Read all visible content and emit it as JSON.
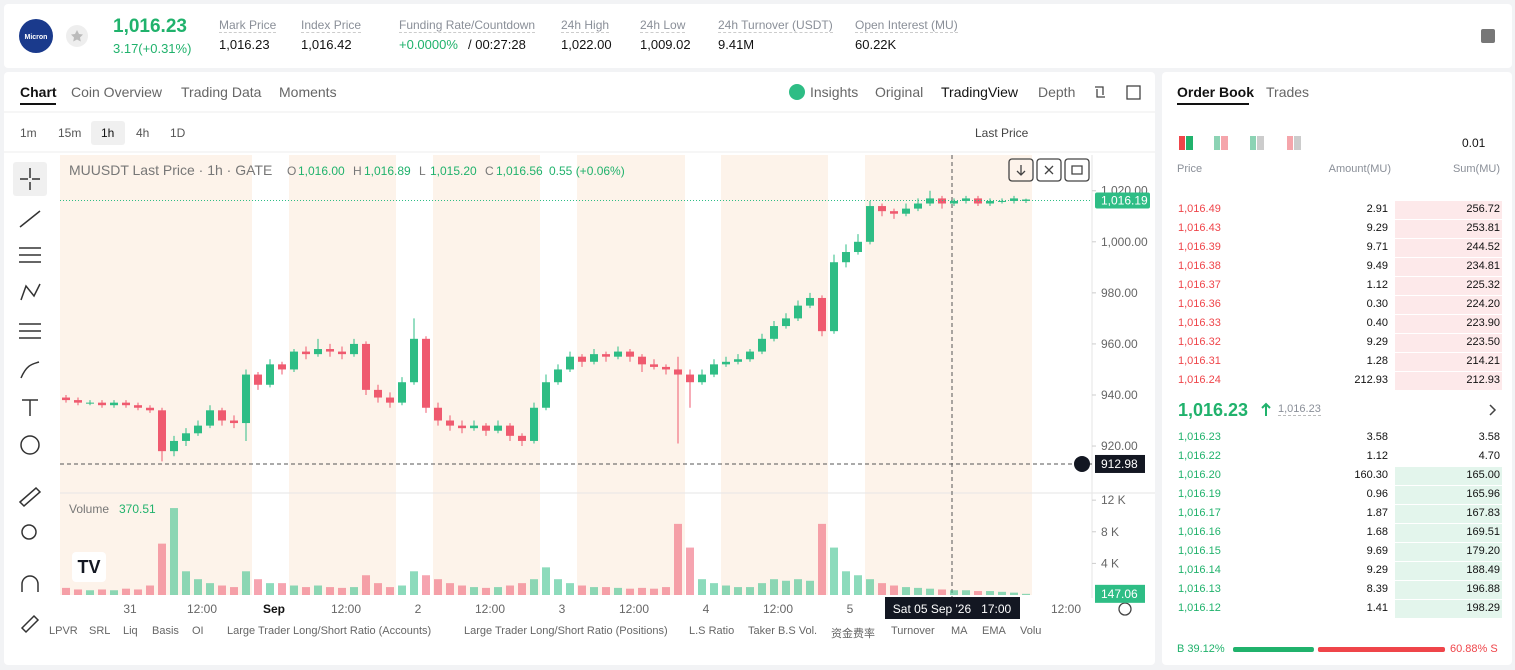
{
  "header": {
    "logo_text": "Micron",
    "last_price": "1,016.23",
    "change": "3.17(+0.31%)",
    "stats": [
      {
        "label": "Mark Price",
        "value": "1,016.23"
      },
      {
        "label": "Index Price",
        "value": "1,016.42"
      },
      {
        "label": "Funding Rate/Countdown",
        "value": "+0.0000%",
        "value2": "/ 00:27:28"
      },
      {
        "label": "24h High",
        "value": "1,022.00"
      },
      {
        "label": "24h Low",
        "value": "1,009.02"
      },
      {
        "label": "24h Turnover (USDT)",
        "value": "9.41M"
      },
      {
        "label": "Open Interest (MU)",
        "value": "60.22K"
      }
    ]
  },
  "tabs": [
    "Chart",
    "Coin Overview",
    "Trading Data",
    "Moments"
  ],
  "view_tabs": [
    "Insights",
    "Original",
    "TradingView",
    "Depth"
  ],
  "intervals": [
    "1m",
    "15m",
    "1h",
    "4h",
    "1D"
  ],
  "price_type": "Last Price",
  "chart_data": {
    "type": "candlestick",
    "legend": {
      "symbol": "MUUSDT Last Price · 1h · GATE",
      "items": [
        {
          "k": "O",
          "v": "1,016.00"
        },
        {
          "k": "H",
          "v": "1,016.89"
        },
        {
          "k": "L",
          "v": "1,015.20"
        },
        {
          "k": "C",
          "v": "1,016.56"
        }
      ],
      "change": "0.55 (+0.06%)"
    },
    "up_color": "#2ebd85",
    "down_color": "#ef5a6f",
    "ohlc": [
      [
        939,
        940,
        937,
        938
      ],
      [
        938,
        939,
        936,
        937
      ],
      [
        937,
        938,
        936,
        937
      ],
      [
        937,
        938,
        935,
        936
      ],
      [
        936,
        938,
        935,
        937
      ],
      [
        937,
        938,
        935,
        936
      ],
      [
        936,
        937,
        934,
        935
      ],
      [
        935,
        936,
        933,
        934
      ],
      [
        934,
        935,
        914,
        918
      ],
      [
        918,
        924,
        916,
        922
      ],
      [
        922,
        927,
        920,
        925
      ],
      [
        925,
        930,
        924,
        928
      ],
      [
        928,
        936,
        927,
        934
      ],
      [
        934,
        935,
        928,
        930
      ],
      [
        930,
        932,
        927,
        929
      ],
      [
        929,
        950,
        922,
        948
      ],
      [
        948,
        949,
        942,
        944
      ],
      [
        944,
        954,
        943,
        952
      ],
      [
        952,
        953,
        948,
        950
      ],
      [
        950,
        958,
        949,
        957
      ],
      [
        957,
        959,
        954,
        956
      ],
      [
        956,
        962,
        955,
        958
      ],
      [
        958,
        960,
        955,
        957
      ],
      [
        957,
        959,
        954,
        956
      ],
      [
        956,
        962,
        955,
        960
      ],
      [
        960,
        961,
        940,
        942
      ],
      [
        942,
        944,
        937,
        939
      ],
      [
        939,
        941,
        935,
        937
      ],
      [
        937,
        947,
        936,
        945
      ],
      [
        945,
        970,
        944,
        962
      ],
      [
        962,
        963,
        933,
        935
      ],
      [
        935,
        937,
        928,
        930
      ],
      [
        930,
        932,
        926,
        928
      ],
      [
        928,
        930,
        925,
        927
      ],
      [
        927,
        930,
        926,
        928
      ],
      [
        928,
        929,
        924,
        926
      ],
      [
        926,
        930,
        925,
        928
      ],
      [
        928,
        929,
        922,
        924
      ],
      [
        924,
        925,
        920,
        922
      ],
      [
        922,
        937,
        921,
        935
      ],
      [
        935,
        948,
        934,
        945
      ],
      [
        945,
        952,
        944,
        950
      ],
      [
        950,
        957,
        949,
        955
      ],
      [
        955,
        956,
        951,
        953
      ],
      [
        953,
        958,
        952,
        956
      ],
      [
        956,
        957,
        953,
        955
      ],
      [
        955,
        959,
        954,
        957
      ],
      [
        957,
        958,
        953,
        955
      ],
      [
        955,
        956,
        949,
        952
      ],
      [
        952,
        954,
        950,
        951
      ],
      [
        951,
        952,
        948,
        950
      ],
      [
        950,
        955,
        921,
        948
      ],
      [
        948,
        950,
        935,
        945
      ],
      [
        945,
        950,
        944,
        948
      ],
      [
        948,
        954,
        947,
        952
      ],
      [
        952,
        955,
        951,
        953
      ],
      [
        953,
        956,
        952,
        954
      ],
      [
        954,
        958,
        953,
        957
      ],
      [
        957,
        964,
        956,
        962
      ],
      [
        962,
        969,
        961,
        967
      ],
      [
        967,
        972,
        966,
        970
      ],
      [
        970,
        977,
        969,
        975
      ],
      [
        975,
        980,
        974,
        978
      ],
      [
        978,
        979,
        963,
        965
      ],
      [
        965,
        995,
        964,
        992
      ],
      [
        992,
        999,
        990,
        996
      ],
      [
        996,
        1003,
        995,
        1000
      ],
      [
        1000,
        1016,
        999,
        1014
      ],
      [
        1014,
        1015,
        1010,
        1012
      ],
      [
        1012,
        1013,
        1009,
        1011
      ],
      [
        1011,
        1015,
        1010,
        1013
      ],
      [
        1013,
        1017,
        1012,
        1015
      ],
      [
        1015,
        1020,
        1014,
        1017
      ],
      [
        1017,
        1018,
        1013,
        1015
      ],
      [
        1015,
        1017,
        1014,
        1016
      ],
      [
        1016,
        1018,
        1015,
        1017
      ],
      [
        1017,
        1018,
        1014,
        1015
      ],
      [
        1015,
        1017,
        1014,
        1016
      ],
      [
        1016,
        1017,
        1015,
        1016
      ],
      [
        1016,
        1018,
        1015,
        1017
      ],
      [
        1016,
        1016.89,
        1015.2,
        1016.56
      ]
    ],
    "volume": [
      900,
      700,
      600,
      700,
      600,
      800,
      700,
      1200,
      6500,
      11000,
      3000,
      2000,
      1500,
      1200,
      1000,
      3000,
      2000,
      1500,
      1500,
      1200,
      1000,
      1200,
      1000,
      900,
      1000,
      2500,
      1500,
      1000,
      1200,
      3000,
      2500,
      2000,
      1500,
      1200,
      1000,
      900,
      1000,
      1200,
      1500,
      2000,
      3500,
      2000,
      1500,
      1200,
      1000,
      1000,
      900,
      800,
      900,
      800,
      1000,
      9000,
      6000,
      2000,
      1500,
      1200,
      1000,
      1000,
      1500,
      2000,
      1800,
      2000,
      1800,
      9000,
      6000,
      3000,
      2500,
      2000,
      1500,
      1200,
      1000,
      900,
      800,
      700,
      600,
      600,
      500,
      500,
      400,
      300,
      147.06
    ],
    "ylim": [
      902,
      1034
    ],
    "yticks": [
      {
        "value": 920,
        "label": "920.00"
      },
      {
        "value": 940,
        "label": "940.00"
      },
      {
        "value": 960,
        "label": "960.00"
      },
      {
        "value": 980,
        "label": "980.00"
      },
      {
        "value": 1000,
        "label": "1,000.00"
      },
      {
        "value": 1020,
        "label": "1,020.00"
      }
    ],
    "volume_ylim": [
      0,
      12400
    ],
    "volume_yticks": [
      {
        "value": 4000,
        "label": "4 K"
      },
      {
        "value": 8000,
        "label": "8 K"
      },
      {
        "value": 12000,
        "label": "12 K"
      }
    ],
    "x_labels": [
      "31",
      "12:00",
      "Sep",
      "12:00",
      "2",
      "12:00",
      "3",
      "12:00",
      "4",
      "12:00",
      "5",
      null,
      null,
      "12:00"
    ],
    "last_price": {
      "value": 1016.19,
      "label": "1,016.19"
    },
    "crosshair": {
      "value": 912.98,
      "label": "912.98",
      "time": "Sat 05 Sep '26   17:00"
    },
    "volume_label": "Volume",
    "volume_value": "370.51",
    "volume_last": {
      "value": 147.06,
      "label": "147.06"
    }
  },
  "indicators": [
    "LPVR",
    "SRL",
    "Liq",
    "Basis",
    "OI",
    "Large Trader Long/Short Ratio (Accounts)",
    "Large Trader Long/Short Ratio (Positions)",
    "L.S Ratio",
    "Taker B.S Vol.",
    "资金费率",
    "Turnover",
    "MA",
    "EMA",
    "Volu"
  ],
  "order_book": {
    "tabs": [
      "Order Book",
      "Trades"
    ],
    "precision": "0.01",
    "columns": [
      "Price",
      "Amount(MU)",
      "Sum(MU)"
    ],
    "asks": [
      [
        "1,016.49",
        "2.91",
        "256.72"
      ],
      [
        "1,016.43",
        "9.29",
        "253.81"
      ],
      [
        "1,016.39",
        "9.71",
        "244.52"
      ],
      [
        "1,016.38",
        "9.49",
        "234.81"
      ],
      [
        "1,016.37",
        "1.12",
        "225.32"
      ],
      [
        "1,016.36",
        "0.30",
        "224.20"
      ],
      [
        "1,016.33",
        "0.40",
        "223.90"
      ],
      [
        "1,016.32",
        "9.29",
        "223.50"
      ],
      [
        "1,016.31",
        "1.28",
        "214.21"
      ],
      [
        "1,016.24",
        "212.93",
        "212.93"
      ]
    ],
    "mid": "1,016.23",
    "mark": "1,016.23",
    "bids": [
      [
        "1,016.23",
        "3.58",
        "3.58"
      ],
      [
        "1,016.22",
        "1.12",
        "4.70"
      ],
      [
        "1,016.20",
        "160.30",
        "165.00"
      ],
      [
        "1,016.19",
        "0.96",
        "165.96"
      ],
      [
        "1,016.17",
        "1.87",
        "167.83"
      ],
      [
        "1,016.16",
        "1.68",
        "169.51"
      ],
      [
        "1,016.15",
        "9.69",
        "179.20"
      ],
      [
        "1,016.14",
        "9.29",
        "188.49"
      ],
      [
        "1,016.13",
        "8.39",
        "196.88"
      ],
      [
        "1,016.12",
        "1.41",
        "198.29"
      ]
    ],
    "ratio": {
      "buy": 39.12,
      "buy_label": "B 39.12%",
      "sell": 60.88,
      "sell_label": "60.88% S"
    }
  }
}
